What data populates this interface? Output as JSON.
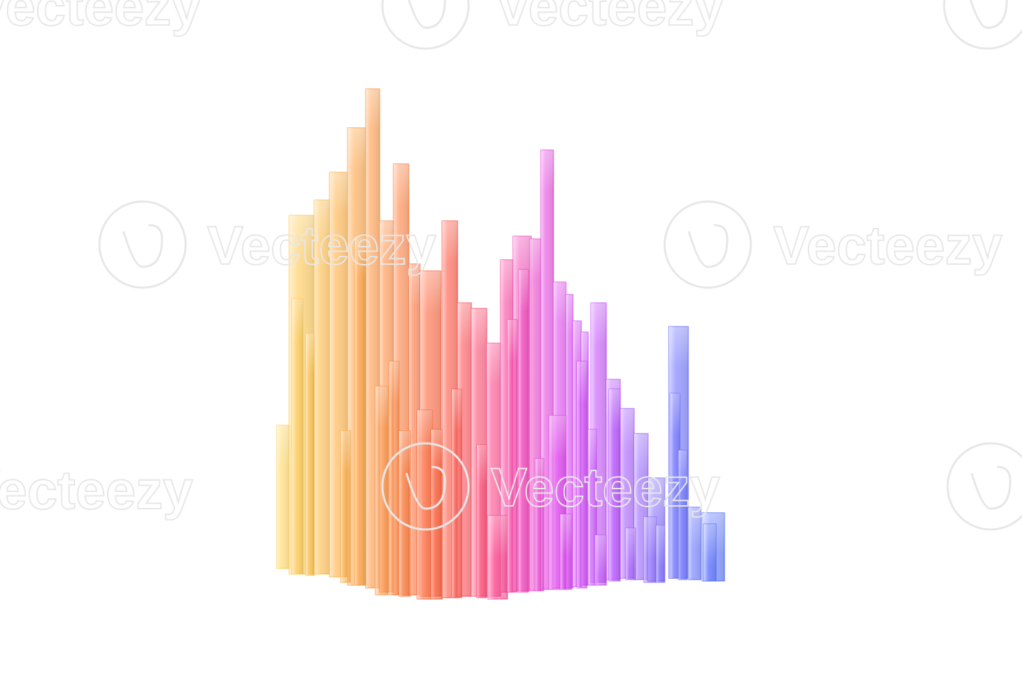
{
  "watermark": {
    "text": "Vecteezy",
    "icon": "vecteezy-logo-icon"
  },
  "colors": {
    "background": "#ffffff",
    "gradient": [
      "#ffd85a",
      "#ffb13a",
      "#ff8a3c",
      "#ff4f2f",
      "#ff3f92",
      "#e23ff0",
      "#b84dff",
      "#6f6cff",
      "#4f72ff"
    ],
    "watermark": "#e7e7e7"
  }
}
